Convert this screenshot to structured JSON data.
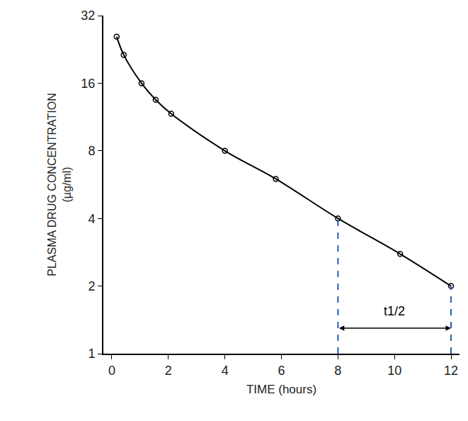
{
  "chart_data": {
    "type": "line",
    "x_label": "TIME (hours)",
    "y_label": [
      "PLASMA DRUG CONCENTRATION",
      "(µg/ml)"
    ],
    "x": [
      0.17,
      0.42,
      1.05,
      1.55,
      2.1,
      4,
      5.8,
      8,
      10.2,
      12
    ],
    "values": [
      25.8,
      21.4,
      16,
      13.5,
      11.7,
      8,
      6,
      4,
      2.78,
      2
    ],
    "color": "#000000",
    "marker": "circle-open",
    "log": "y",
    "grid": false,
    "xlim": [
      -0.3,
      12.3
    ],
    "xticks": [
      0,
      2,
      4,
      6,
      8,
      10,
      12
    ],
    "ylim": [
      1,
      32
    ],
    "yticks": [
      1,
      2,
      4,
      8,
      16,
      32
    ],
    "half_life": {
      "label": "t1/2",
      "start": 8,
      "end": 12,
      "start_value": 4,
      "end_value": 2,
      "arrow_y": 1.3,
      "label_y": 1.55,
      "color": "#2a5db0",
      "line_style": "dash"
    }
  }
}
